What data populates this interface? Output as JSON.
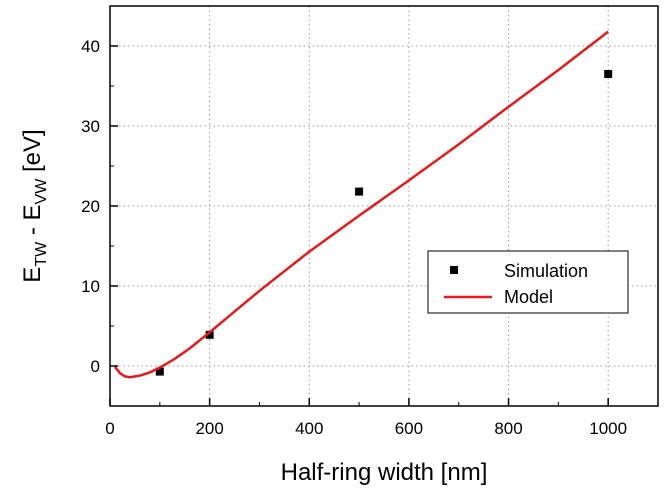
{
  "chart_data": {
    "type": "scatter",
    "xlabel": "Half-ring width [nm]",
    "ylabel_main": "E",
    "ylabel_sub1": "TW",
    "ylabel_mid": " - E",
    "ylabel_sub2": "VW",
    "ylabel_unit": " [eV]",
    "xlim": [
      0,
      1100
    ],
    "ylim": [
      -5,
      45
    ],
    "x_ticks": [
      0,
      200,
      400,
      600,
      800,
      1000
    ],
    "y_ticks": [
      0,
      10,
      20,
      30,
      40
    ],
    "grid": true,
    "legend": "center-right",
    "series": [
      {
        "name": "Simulation",
        "kind": "scatter",
        "color": "#000000",
        "marker": "square",
        "points": [
          {
            "x": 100,
            "y": -0.7
          },
          {
            "x": 200,
            "y": 3.9
          },
          {
            "x": 500,
            "y": 21.8
          },
          {
            "x": 1000,
            "y": 36.5
          }
        ]
      },
      {
        "name": "Model",
        "kind": "line",
        "color": "#e41a1c",
        "points": [
          {
            "x": 10,
            "y": -0.1
          },
          {
            "x": 20,
            "y": -0.9
          },
          {
            "x": 30,
            "y": -1.3
          },
          {
            "x": 40,
            "y": -1.4
          },
          {
            "x": 60,
            "y": -1.2
          },
          {
            "x": 80,
            "y": -0.8
          },
          {
            "x": 100,
            "y": -0.2
          },
          {
            "x": 130,
            "y": 0.9
          },
          {
            "x": 160,
            "y": 2.2
          },
          {
            "x": 200,
            "y": 4.2
          },
          {
            "x": 250,
            "y": 6.8
          },
          {
            "x": 300,
            "y": 9.4
          },
          {
            "x": 400,
            "y": 14.3
          },
          {
            "x": 500,
            "y": 18.8
          },
          {
            "x": 600,
            "y": 23.2
          },
          {
            "x": 700,
            "y": 27.7
          },
          {
            "x": 800,
            "y": 32.4
          },
          {
            "x": 900,
            "y": 37.0
          },
          {
            "x": 1000,
            "y": 41.8
          }
        ]
      }
    ]
  }
}
